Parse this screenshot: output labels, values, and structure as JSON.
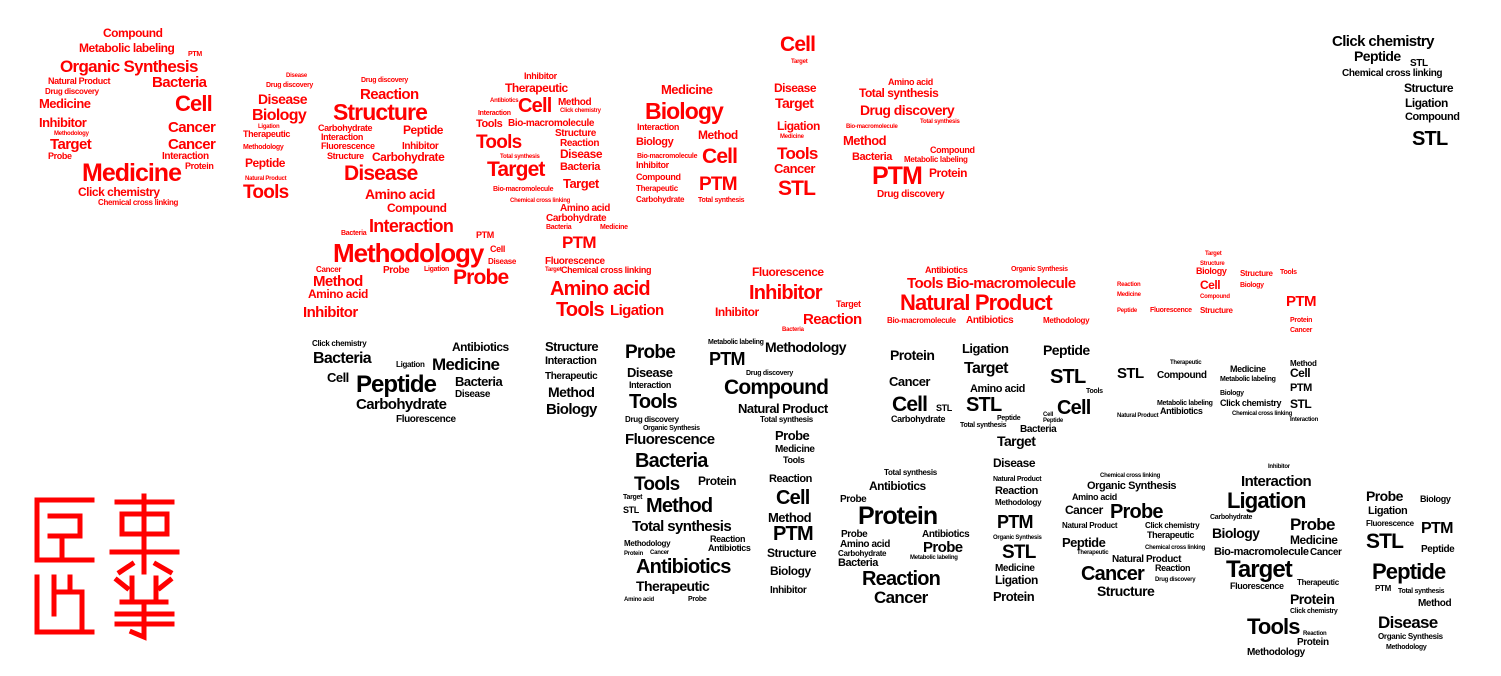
{
  "colors": {
    "red": "#ff0000",
    "black": "#000000"
  },
  "red_words": [
    "Compound",
    "Metabolic labeling",
    "Organic Synthesis",
    "PTM",
    "Natural Product",
    "Bacteria",
    "Drug discovery",
    "Cell",
    "Medicine",
    "Inhibitor",
    "Cancer",
    "Target",
    "Cancer",
    "Probe",
    "Interaction",
    "Medicine",
    "Protein",
    "Click chemistry",
    "Chemical cross linking",
    "Methodology",
    "Disease",
    "Drug discovery",
    "Disease",
    "Biology",
    "Ligation",
    "Therapeutic",
    "Methodology",
    "Peptide",
    "Natural Product",
    "Tools",
    "Drug discovery",
    "Reaction",
    "Structure",
    "Carbohydrate",
    "Peptide",
    "Interaction",
    "Inhibitor",
    "Fluorescence",
    "Structure",
    "Carbohydrate",
    "Disease",
    "Amino acid",
    "Compound",
    "Interaction",
    "Bacteria",
    "PTM",
    "Methodology",
    "Cell",
    "Cancer",
    "Probe",
    "Ligation",
    "Disease",
    "Method",
    "Probe",
    "Amino acid",
    "Inhibitor",
    "Inhibitor",
    "Therapeutic",
    "Antibiotics",
    "Cell",
    "Method",
    "Click chemistry",
    "Interaction",
    "Bio-macromolecule",
    "Tools",
    "Structure",
    "Tools",
    "Reaction",
    "Disease",
    "Total synthesis",
    "Bacteria",
    "Target",
    "Target",
    "Bio-macromolecule",
    "Chemical cross linking",
    "Amino acid",
    "Carbohydrate",
    "Bacteria",
    "Medicine",
    "PTM",
    "Fluorescence",
    "Target",
    "Chemical cross linking",
    "Amino acid",
    "Tools",
    "Ligation",
    "Medicine",
    "Biology",
    "Interaction",
    "Method",
    "Biology",
    "Cell",
    "Bio-macromolecule",
    "Inhibitor",
    "Compound",
    "PTM",
    "Therapeutic",
    "Carbohydrate",
    "Total synthesis",
    "Cell",
    "Target",
    "Disease",
    "Target",
    "Ligation",
    "Medicine",
    "Tools",
    "Cancer",
    "STL",
    "Amino acid",
    "Total synthesis",
    "Drug discovery",
    "Bio-macromolecule",
    "Total synthesis",
    "Method",
    "Compound",
    "Bacteria",
    "Metabolic labeling",
    "PTM",
    "Protein",
    "Drug discovery",
    "Fluorescence",
    "Inhibitor",
    "Antibiotics",
    "Organic Synthesis",
    "Tools Bio-macromolecule",
    "Natural Product",
    "Target",
    "Inhibitor",
    "Reaction",
    "Bio-macromolecule",
    "Antibiotics",
    "Methodology",
    "Bacteria",
    "Target",
    "Structure",
    "Biology",
    "Structure",
    "Tools",
    "Cell",
    "Biology",
    "Compound",
    "Structure",
    "Fluorescence",
    "Peptide",
    "PTM",
    "Protein",
    "Cancer",
    "Reaction",
    "Medicine"
  ],
  "black_words": [
    "Click chemistry",
    "Peptide",
    "STL",
    "Chemical cross linking",
    "Structure",
    "Ligation",
    "Compound",
    "STL",
    "Click chemistry",
    "Antibiotics",
    "Bacteria",
    "Ligation",
    "Medicine",
    "Cell",
    "Peptide",
    "Bacteria",
    "Disease",
    "Carbohydrate",
    "Fluorescence",
    "Structure",
    "Interaction",
    "Therapeutic",
    "Method",
    "Biology",
    "Probe",
    "Disease",
    "Interaction",
    "Tools",
    "Drug discovery",
    "Organic Synthesis",
    "Fluorescence",
    "Bacteria",
    "Tools",
    "Protein",
    "Target",
    "Method",
    "STL",
    "Total synthesis",
    "Methodology",
    "Reaction",
    "Antibiotics",
    "Protein",
    "Cancer",
    "Antibiotics",
    "Therapeutic",
    "Amino acid",
    "Probe",
    "Metabolic labeling",
    "PTM",
    "Methodology",
    "Drug discovery",
    "Compound",
    "Natural Product",
    "Total synthesis",
    "Probe",
    "Medicine",
    "Tools",
    "Reaction",
    "Cell",
    "Method",
    "PTM",
    "Structure",
    "Biology",
    "Inhibitor",
    "Protein",
    "Cancer",
    "Cell",
    "STL",
    "Carbohydrate",
    "Total synthesis",
    "Antibiotics",
    "Probe",
    "Protein",
    "Probe",
    "Amino acid",
    "Antibiotics",
    "Carbohydrate",
    "Probe",
    "Bacteria",
    "Metabolic labeling",
    "Reaction",
    "Cancer",
    "Ligation",
    "Target",
    "Amino acid",
    "STL",
    "Peptide",
    "Total synthesis",
    "Bacteria",
    "Target",
    "Disease",
    "Natural Product",
    "Reaction",
    "Methodology",
    "PTM",
    "Organic Synthesis",
    "STL",
    "Medicine",
    "Ligation",
    "Protein",
    "Peptide",
    "STL",
    "Tools",
    "Cell",
    "Peptide",
    "Cell",
    "STL",
    "Compound",
    "Therapeutic",
    "Medicine",
    "Metabolic labeling",
    "Method",
    "Cell",
    "PTM",
    "Biology",
    "Click chemistry",
    "STL",
    "Antibiotics",
    "Metabolic labeling",
    "Chemical cross linking",
    "Natural Product",
    "Interaction",
    "Chemical cross linking",
    "Organic Synthesis",
    "Amino acid",
    "Cancer",
    "Probe",
    "Natural Product",
    "Click chemistry",
    "Therapeutic",
    "Peptide",
    "Chemical cross linking",
    "Natural Product",
    "Therapeutic",
    "Reaction",
    "Cancer",
    "Drug discovery",
    "Structure",
    "Inhibitor",
    "Interaction",
    "Ligation",
    "Carbohydrate",
    "Probe",
    "Biology",
    "Medicine",
    "Bio-macromolecule",
    "Cancer",
    "Target",
    "Therapeutic",
    "Fluorescence",
    "Protein",
    "Click chemistry",
    "Tools",
    "Protein",
    "Reaction",
    "Methodology",
    "Probe",
    "Biology",
    "Ligation",
    "Fluorescence",
    "PTM",
    "STL",
    "Peptide",
    "Peptide",
    "PTM",
    "Total synthesis",
    "Method",
    "Disease",
    "Organic Synthesis",
    "Methodology"
  ]
}
